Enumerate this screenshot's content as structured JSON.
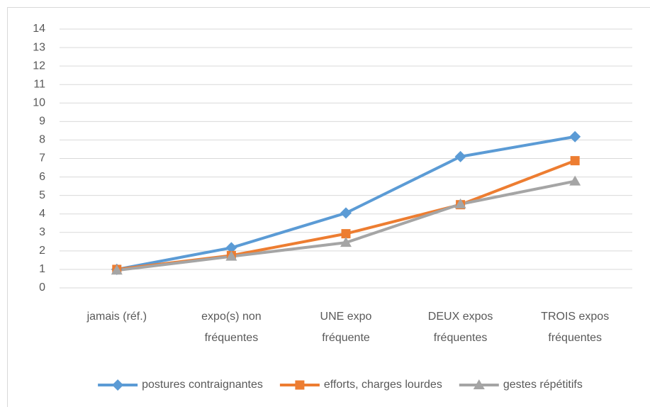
{
  "chart_data": {
    "type": "line",
    "categories": [
      "jamais (réf.)",
      "expo(s) non fréquentes",
      "UNE expo fréquente",
      "DEUX expos fréquentes",
      "TROIS expos fréquentes"
    ],
    "series": [
      {
        "name": "postures contraignantes",
        "color": "#5b9bd5",
        "marker": "diamond",
        "values": [
          1,
          2.17,
          4.05,
          7.1,
          8.18
        ]
      },
      {
        "name": "efforts, charges lourdes",
        "color": "#ed7d31",
        "marker": "square",
        "values": [
          1,
          1.75,
          2.93,
          4.5,
          6.88
        ]
      },
      {
        "name": "gestes répétitifs",
        "color": "#a5a5a5",
        "marker": "triangle",
        "values": [
          0.95,
          1.7,
          2.45,
          4.53,
          5.77
        ]
      }
    ],
    "ylim": [
      0,
      14
    ],
    "yticks": [
      0,
      1,
      2,
      3,
      4,
      5,
      6,
      7,
      8,
      9,
      10,
      11,
      12,
      13,
      14
    ],
    "grid": true,
    "legend": "bottom"
  }
}
